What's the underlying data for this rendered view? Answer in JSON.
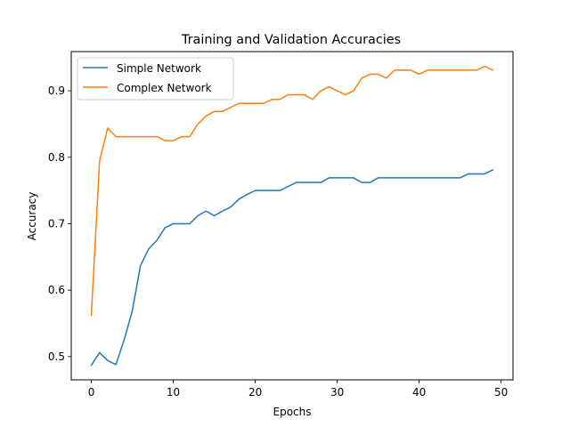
{
  "chart_data": {
    "type": "line",
    "title": "Training and Validation Accuracies",
    "xlabel": "Epochs",
    "ylabel": "Accuracy",
    "xlim": [
      -2.45,
      51.45
    ],
    "ylim": [
      0.465,
      0.959
    ],
    "xticks": [
      0,
      10,
      20,
      30,
      40,
      50
    ],
    "yticks": [
      0.5,
      0.6,
      0.7,
      0.8,
      0.9
    ],
    "ytick_labels": [
      "0.5",
      "0.6",
      "0.7",
      "0.8",
      "0.9"
    ],
    "grid": false,
    "legend_position": "top-left",
    "x": [
      0,
      1,
      2,
      3,
      4,
      5,
      6,
      7,
      8,
      9,
      10,
      11,
      12,
      13,
      14,
      15,
      16,
      17,
      18,
      19,
      20,
      21,
      22,
      23,
      24,
      25,
      26,
      27,
      28,
      29,
      30,
      31,
      32,
      33,
      34,
      35,
      36,
      37,
      38,
      39,
      40,
      41,
      42,
      43,
      44,
      45,
      46,
      47,
      48,
      49
    ],
    "series": [
      {
        "name": "Simple Network",
        "color": "#1f77b4",
        "values": [
          0.487,
          0.506,
          0.494,
          0.488,
          0.525,
          0.569,
          0.637,
          0.662,
          0.675,
          0.694,
          0.7,
          0.7,
          0.7,
          0.712,
          0.719,
          0.712,
          0.719,
          0.725,
          0.737,
          0.744,
          0.75,
          0.75,
          0.75,
          0.75,
          0.756,
          0.762,
          0.762,
          0.762,
          0.762,
          0.769,
          0.769,
          0.769,
          0.769,
          0.762,
          0.762,
          0.769,
          0.769,
          0.769,
          0.769,
          0.769,
          0.769,
          0.769,
          0.769,
          0.769,
          0.769,
          0.769,
          0.775,
          0.775,
          0.775,
          0.781
        ]
      },
      {
        "name": "Complex Network",
        "color": "#ff7f0e",
        "values": [
          0.562,
          0.794,
          0.844,
          0.831,
          0.831,
          0.831,
          0.831,
          0.831,
          0.831,
          0.825,
          0.825,
          0.831,
          0.831,
          0.85,
          0.862,
          0.869,
          0.869,
          0.875,
          0.881,
          0.881,
          0.881,
          0.881,
          0.887,
          0.887,
          0.894,
          0.894,
          0.894,
          0.887,
          0.9,
          0.906,
          0.9,
          0.894,
          0.9,
          0.919,
          0.925,
          0.925,
          0.919,
          0.931,
          0.931,
          0.931,
          0.925,
          0.931,
          0.931,
          0.931,
          0.931,
          0.931,
          0.931,
          0.931,
          0.937,
          0.931
        ]
      }
    ]
  }
}
